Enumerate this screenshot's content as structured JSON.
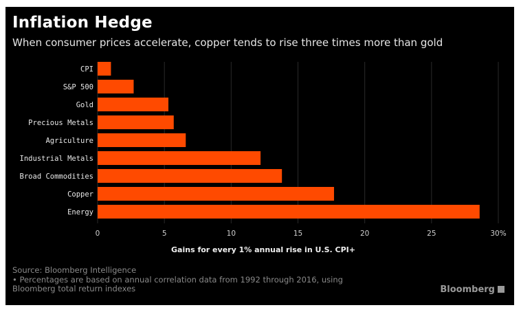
{
  "header": {
    "title": "Inflation Hedge",
    "subtitle": "When consumer prices accelerate, copper tends to rise three times more than gold"
  },
  "footer": {
    "source": "Source: Bloomberg Intelligence",
    "note_line1": "• Percentages are based on annual correlation data from 1992 through 2016, using",
    "note_line2": "Bloomberg total return indexes",
    "brand": "Bloomberg"
  },
  "colors": {
    "bar": "#ff4a00",
    "background": "#000000",
    "grid": "#2a2a2a"
  },
  "chart_data": {
    "type": "bar",
    "orientation": "horizontal",
    "categories": [
      "CPI",
      "S&P 500",
      "Gold",
      "Precious Metals",
      "Agriculture",
      "Industrial Metals",
      "Broad Commodities",
      "Copper",
      "Energy"
    ],
    "values": [
      1.0,
      2.7,
      5.3,
      5.7,
      6.6,
      12.2,
      13.8,
      17.7,
      28.6
    ],
    "xlim": [
      0,
      30
    ],
    "ticks": [
      "0",
      "5",
      "10",
      "15",
      "20",
      "25",
      "30%"
    ],
    "tick_values": [
      0,
      5,
      10,
      15,
      20,
      25,
      30
    ],
    "xlabel": "Gains for every 1% annual rise in U.S. CPI+",
    "grid": true
  }
}
